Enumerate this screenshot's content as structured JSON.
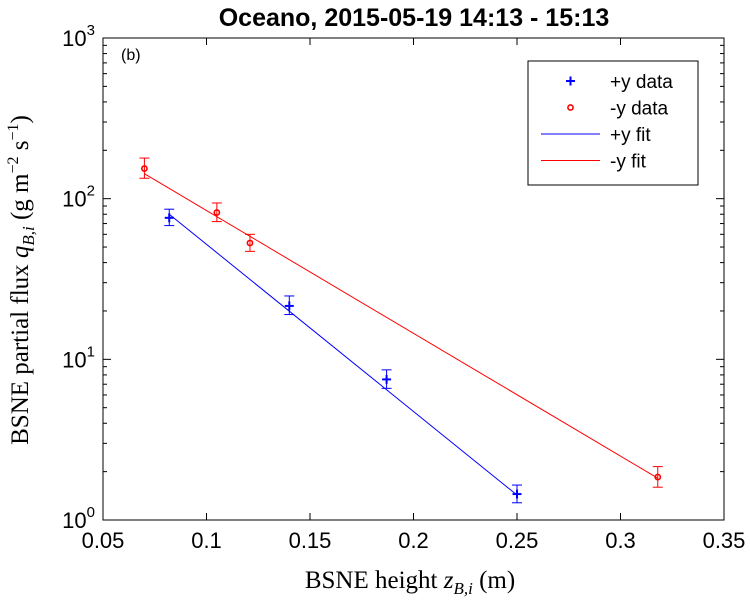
{
  "chart_data": {
    "type": "scatter",
    "title": "Oceano, 2015-05-19 14:13 - 15:13",
    "panel_label": "(b)",
    "xlabel": {
      "main": "BSNE height ",
      "var": "z",
      "sub": "B,i",
      "unit": " (m)"
    },
    "ylabel": {
      "main": "BSNE partial flux ",
      "var": "q",
      "sub": "B,i",
      "unit_open": " (g m",
      "exp1": "−2",
      "mid": " s",
      "exp2": "−1",
      "unit_close": ")"
    },
    "xlim": [
      0.05,
      0.35
    ],
    "ylim": [
      1,
      1000
    ],
    "yscale": "log",
    "grid": false,
    "legend_position": "top-right",
    "x_ticks": [
      "0.05",
      "0.1",
      "0.15",
      "0.2",
      "0.25",
      "0.3",
      "0.35"
    ],
    "y_ticks": [
      {
        "base": "10",
        "exp": "0"
      },
      {
        "base": "10",
        "exp": "1"
      },
      {
        "base": "10",
        "exp": "2"
      },
      {
        "base": "10",
        "exp": "3"
      }
    ],
    "series": [
      {
        "name": "+y data",
        "kind": "points",
        "marker": "plus",
        "color": "#0000ff",
        "x": [
          0.082,
          0.14,
          0.187,
          0.25
        ],
        "y": [
          76,
          21.5,
          7.5,
          1.45
        ],
        "err_low": [
          8,
          2.5,
          0.9,
          0.17
        ],
        "err_high": [
          10,
          3.3,
          1.1,
          0.2
        ]
      },
      {
        "name": "-y data",
        "kind": "points",
        "marker": "circle",
        "color": "#ff0000",
        "x": [
          0.07,
          0.105,
          0.121,
          0.318
        ],
        "y": [
          154,
          82,
          53,
          1.85
        ],
        "err_low": [
          20,
          10,
          6,
          0.25
        ],
        "err_high": [
          25,
          12,
          7,
          0.3
        ]
      },
      {
        "name": "+y fit",
        "kind": "line",
        "color": "#0000ff",
        "x": [
          0.082,
          0.25
        ],
        "y": [
          80,
          1.43
        ]
      },
      {
        "name": "-y fit",
        "kind": "line",
        "color": "#ff0000",
        "x": [
          0.07,
          0.318
        ],
        "y": [
          143,
          1.82
        ]
      }
    ]
  }
}
